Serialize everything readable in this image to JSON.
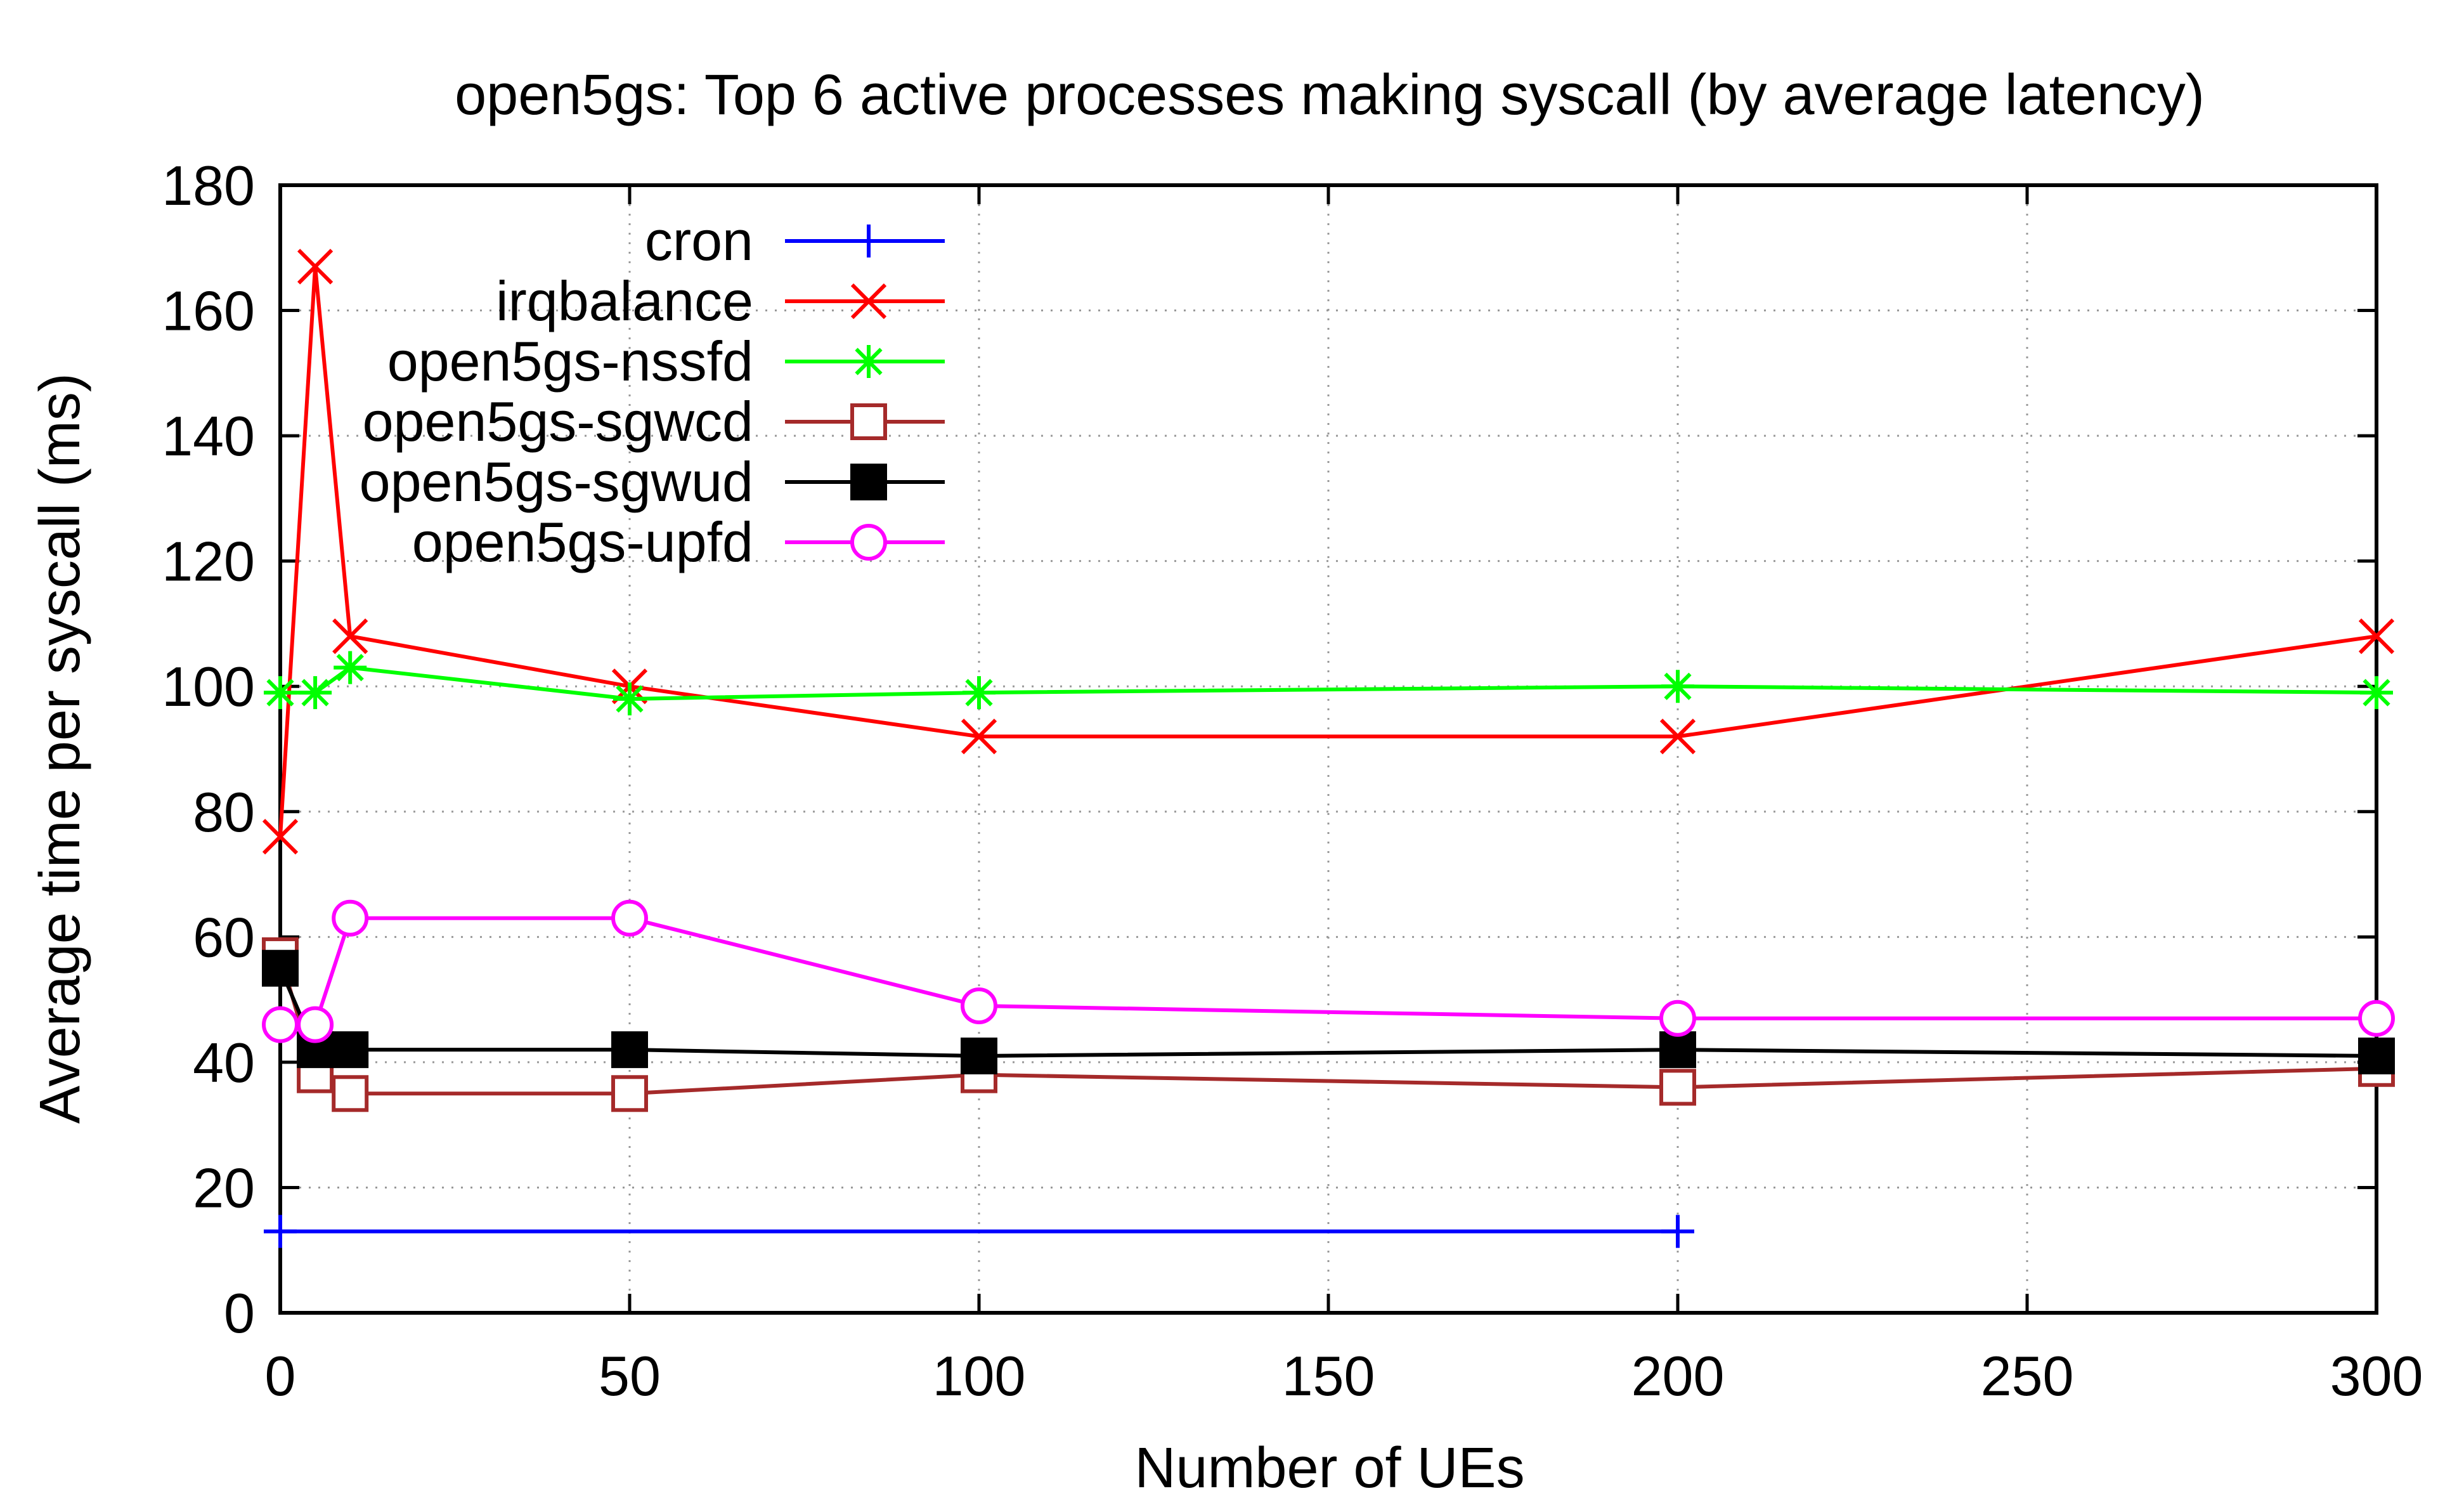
{
  "chart_data": {
    "type": "line",
    "title": "open5gs: Top 6 active processes making syscall (by average latency)",
    "xlabel": "Number of UEs",
    "ylabel": "Average time per syscall (ms)",
    "xlim": [
      0,
      300
    ],
    "ylim": [
      0,
      180
    ],
    "x_ticks": [
      0,
      50,
      100,
      150,
      200,
      250,
      300
    ],
    "y_ticks": [
      0,
      20,
      40,
      60,
      80,
      100,
      120,
      140,
      160,
      180
    ],
    "grid": true,
    "legend_position": "top-left",
    "series": [
      {
        "name": "cron",
        "color": "#0000ff",
        "marker": "plus",
        "x": [
          0,
          200
        ],
        "y": [
          13,
          13
        ]
      },
      {
        "name": "irqbalance",
        "color": "#ff0000",
        "marker": "cross",
        "x": [
          0,
          5,
          10,
          50,
          100,
          200,
          300
        ],
        "y": [
          76,
          167,
          108,
          100,
          92,
          92,
          108
        ]
      },
      {
        "name": "open5gs-nssfd",
        "color": "#00ff00",
        "marker": "star",
        "x": [
          0,
          5,
          10,
          50,
          100,
          200,
          300
        ],
        "y": [
          99,
          99,
          103,
          98,
          99,
          100,
          99
        ]
      },
      {
        "name": "open5gs-sgwcd",
        "color": "#a52a2a",
        "marker": "open-square",
        "x": [
          0,
          5,
          10,
          50,
          100,
          200,
          300
        ],
        "y": [
          57,
          38,
          35,
          35,
          38,
          36,
          39
        ]
      },
      {
        "name": "open5gs-sgwud",
        "color": "#000000",
        "marker": "filled-square",
        "x": [
          0,
          5,
          10,
          50,
          100,
          200,
          300
        ],
        "y": [
          55,
          42,
          42,
          42,
          41,
          42,
          41
        ]
      },
      {
        "name": "open5gs-upfd",
        "color": "#ff00ff",
        "marker": "open-circle",
        "x": [
          0,
          5,
          10,
          50,
          100,
          200,
          300
        ],
        "y": [
          46,
          46,
          63,
          63,
          49,
          47,
          47
        ]
      }
    ]
  }
}
